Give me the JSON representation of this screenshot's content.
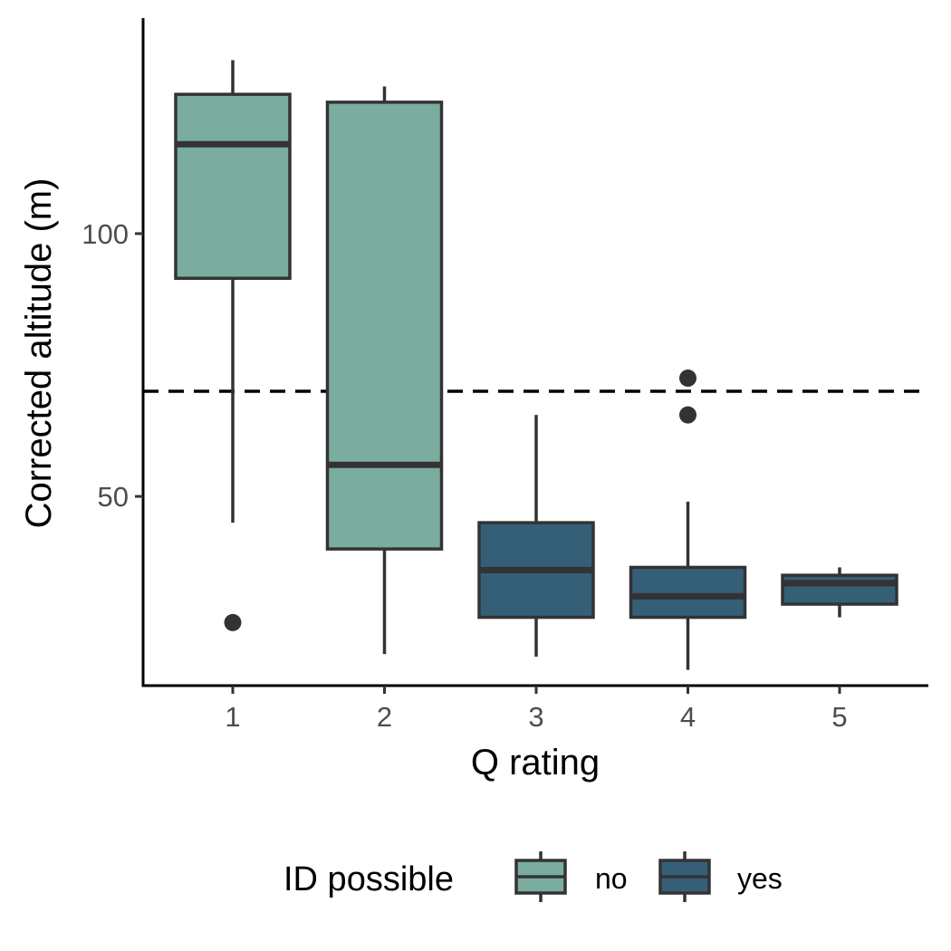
{
  "chart_data": {
    "type": "boxplot",
    "xlabel": "Q rating",
    "ylabel": "Corrected altitude (m)",
    "categories": [
      "1",
      "2",
      "3",
      "4",
      "5"
    ],
    "ylim": [
      14,
      141
    ],
    "y_ticks": [
      50,
      100
    ],
    "reference_line": {
      "y": 70,
      "style": "dashed"
    },
    "legend": {
      "title": "ID possible",
      "position": "bottom",
      "entries": [
        {
          "label": "no",
          "color": "#7aaca0"
        },
        {
          "label": "yes",
          "color": "#355f77"
        }
      ]
    },
    "boxes": [
      {
        "category": "1",
        "group": "no",
        "whisker_low": 45,
        "q1": 91.5,
        "median": 117,
        "q3": 126.5,
        "whisker_high": 133,
        "outliers": [
          26
        ]
      },
      {
        "category": "2",
        "group": "no",
        "whisker_low": 20,
        "q1": 40,
        "median": 56,
        "q3": 125,
        "whisker_high": 128,
        "outliers": []
      },
      {
        "category": "3",
        "group": "yes",
        "whisker_low": 19.5,
        "q1": 27,
        "median": 36,
        "q3": 45,
        "whisker_high": 65.5,
        "outliers": []
      },
      {
        "category": "4",
        "group": "yes",
        "whisker_low": 17,
        "q1": 27,
        "median": 31,
        "q3": 36.5,
        "whisker_high": 49,
        "outliers": [
          65.5,
          72.5
        ]
      },
      {
        "category": "5",
        "group": "yes",
        "whisker_low": 27,
        "q1": 29.5,
        "median": 33.5,
        "q3": 35,
        "whisker_high": 36.5,
        "outliers": []
      }
    ],
    "grid": false
  }
}
